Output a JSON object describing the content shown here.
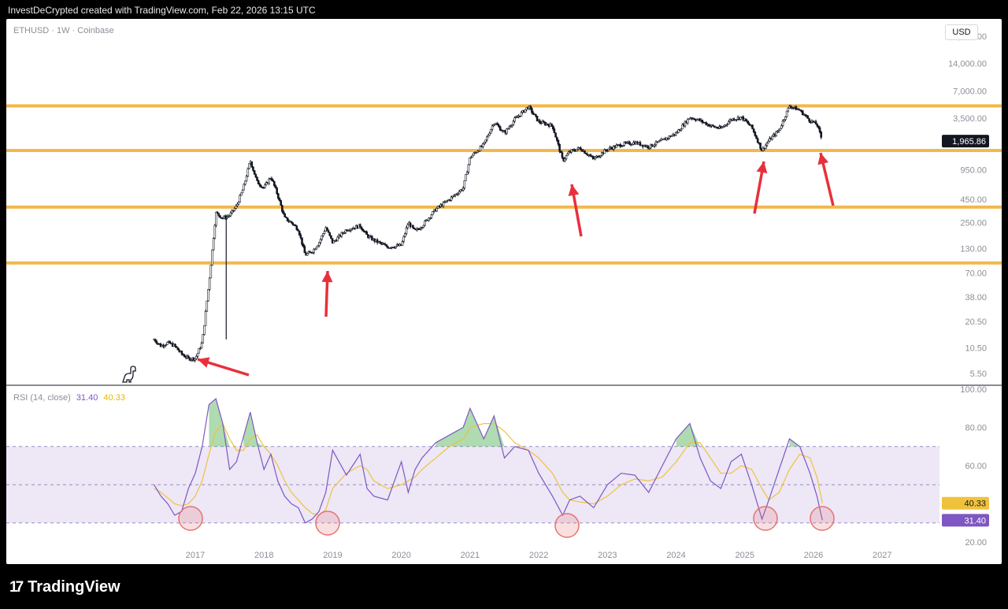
{
  "header": {
    "attribution": "InvestDeCrypted created with TradingView.com, Feb 22, 2026 13:15 UTC"
  },
  "chart": {
    "symbol_line": "ETHUSD · 1W · Coinbase",
    "currency": "USD",
    "footer_brand": "TradingView",
    "colors": {
      "candle": "#131722",
      "level": "#f2b84b",
      "arrow": "#e8303d",
      "rsi": "#7e57c2",
      "rsi_ma": "#f0c23c",
      "band": "#ede7f6",
      "circle": "#e57373"
    }
  },
  "chart_data": [
    {
      "type": "candlestick",
      "title": "ETHUSD · 1W · Coinbase",
      "y_scale": "log",
      "ylim": [
        4.5,
        40000
      ],
      "y_ticks": [
        "28,000.00",
        "14,000.00",
        "7,000.00",
        "3,500.00",
        "950.00",
        "450.00",
        "250.00",
        "130.00",
        "70.00",
        "38.00",
        "20.50",
        "10.50",
        "5.50"
      ],
      "x_ticks": [
        "2017",
        "2018",
        "2019",
        "2020",
        "2021",
        "2022",
        "2023",
        "2024",
        "2025",
        "2026",
        "2027"
      ],
      "last_price": "1,965.86",
      "horizontal_levels": [
        4800,
        1550,
        370,
        90
      ],
      "series": [
        {
          "x": [
            2016.4,
            2016.5,
            2016.6,
            2016.7,
            2016.8,
            2016.9,
            2017.0,
            2017.1,
            2017.2,
            2017.3,
            2017.4,
            2017.5,
            2017.6,
            2017.7,
            2017.8,
            2017.9,
            2018.0,
            2018.1,
            2018.2,
            2018.3,
            2018.4,
            2018.5,
            2018.6,
            2018.7,
            2018.8,
            2018.9,
            2019.0,
            2019.2,
            2019.4,
            2019.5,
            2019.6,
            2019.8,
            2020.0,
            2020.1,
            2020.2,
            2020.3,
            2020.5,
            2020.7,
            2020.9,
            2021.0,
            2021.2,
            2021.35,
            2021.5,
            2021.65,
            2021.85,
            2022.0,
            2022.2,
            2022.35,
            2022.45,
            2022.6,
            2022.8,
            2023.0,
            2023.2,
            2023.4,
            2023.6,
            2023.8,
            2024.0,
            2024.2,
            2024.35,
            2024.5,
            2024.65,
            2024.8,
            2024.95,
            2025.1,
            2025.25,
            2025.35,
            2025.5,
            2025.65,
            2025.8,
            2025.95,
            2026.05,
            2026.13
          ],
          "values": [
            13,
            11,
            12,
            11,
            9,
            8,
            8,
            12,
            55,
            320,
            280,
            300,
            380,
            600,
            1200,
            700,
            600,
            800,
            500,
            280,
            250,
            210,
            110,
            120,
            150,
            220,
            150,
            210,
            230,
            180,
            160,
            135,
            140,
            250,
            200,
            230,
            350,
            450,
            600,
            1300,
            1800,
            3200,
            2400,
            3400,
            4700,
            3200,
            2900,
            1200,
            1500,
            1650,
            1250,
            1600,
            1800,
            1900,
            1700,
            2000,
            2400,
            3600,
            3300,
            2900,
            2700,
            3400,
            3600,
            2800,
            1550,
            2000,
            2600,
            4800,
            4300,
            3300,
            3000,
            1965
          ]
        }
      ]
    },
    {
      "type": "line",
      "title": "RSI (14, close)",
      "ylim": [
        20,
        100
      ],
      "y_ticks": [
        "100.00",
        "80.00",
        "60.00",
        "40.00",
        "20.00"
      ],
      "bands": {
        "upper": 70,
        "middle": 50,
        "lower": 30
      },
      "x": [
        2016.4,
        2016.5,
        2016.6,
        2016.7,
        2016.8,
        2016.9,
        2017.0,
        2017.1,
        2017.2,
        2017.3,
        2017.4,
        2017.5,
        2017.6,
        2017.7,
        2017.8,
        2017.9,
        2018.0,
        2018.1,
        2018.2,
        2018.3,
        2018.4,
        2018.5,
        2018.6,
        2018.7,
        2018.8,
        2018.9,
        2019.0,
        2019.2,
        2019.4,
        2019.5,
        2019.6,
        2019.8,
        2020.0,
        2020.1,
        2020.2,
        2020.3,
        2020.5,
        2020.7,
        2020.9,
        2021.0,
        2021.2,
        2021.35,
        2021.5,
        2021.65,
        2021.85,
        2022.0,
        2022.2,
        2022.35,
        2022.45,
        2022.6,
        2022.8,
        2023.0,
        2023.2,
        2023.4,
        2023.6,
        2023.8,
        2024.0,
        2024.2,
        2024.35,
        2024.5,
        2024.65,
        2024.8,
        2024.95,
        2025.1,
        2025.25,
        2025.35,
        2025.5,
        2025.65,
        2025.8,
        2025.95,
        2026.05,
        2026.13
      ],
      "series": [
        {
          "name": "RSI",
          "display_value": "31.40",
          "values": [
            50,
            44,
            40,
            34,
            36,
            48,
            56,
            70,
            92,
            95,
            82,
            58,
            62,
            75,
            88,
            72,
            58,
            66,
            52,
            44,
            40,
            38,
            30,
            32,
            36,
            46,
            68,
            55,
            66,
            48,
            44,
            42,
            62,
            46,
            58,
            64,
            72,
            76,
            80,
            90,
            74,
            86,
            64,
            70,
            68,
            56,
            44,
            34,
            42,
            44,
            38,
            50,
            56,
            55,
            46,
            60,
            74,
            82,
            64,
            52,
            48,
            62,
            66,
            50,
            32,
            42,
            58,
            74,
            70,
            56,
            44,
            31.4
          ]
        },
        {
          "name": "RSI MA",
          "display_value": "40.33",
          "values": [
            48,
            46,
            43,
            40,
            39,
            40,
            44,
            52,
            66,
            78,
            82,
            74,
            68,
            68,
            74,
            76,
            70,
            66,
            60,
            52,
            46,
            42,
            38,
            35,
            34,
            37,
            48,
            56,
            60,
            58,
            52,
            48,
            50,
            52,
            54,
            58,
            64,
            70,
            74,
            80,
            82,
            82,
            78,
            72,
            68,
            64,
            56,
            46,
            42,
            41,
            40,
            44,
            50,
            53,
            52,
            54,
            62,
            72,
            72,
            64,
            56,
            56,
            60,
            58,
            48,
            42,
            46,
            58,
            66,
            64,
            54,
            40.33
          ]
        }
      ]
    }
  ]
}
